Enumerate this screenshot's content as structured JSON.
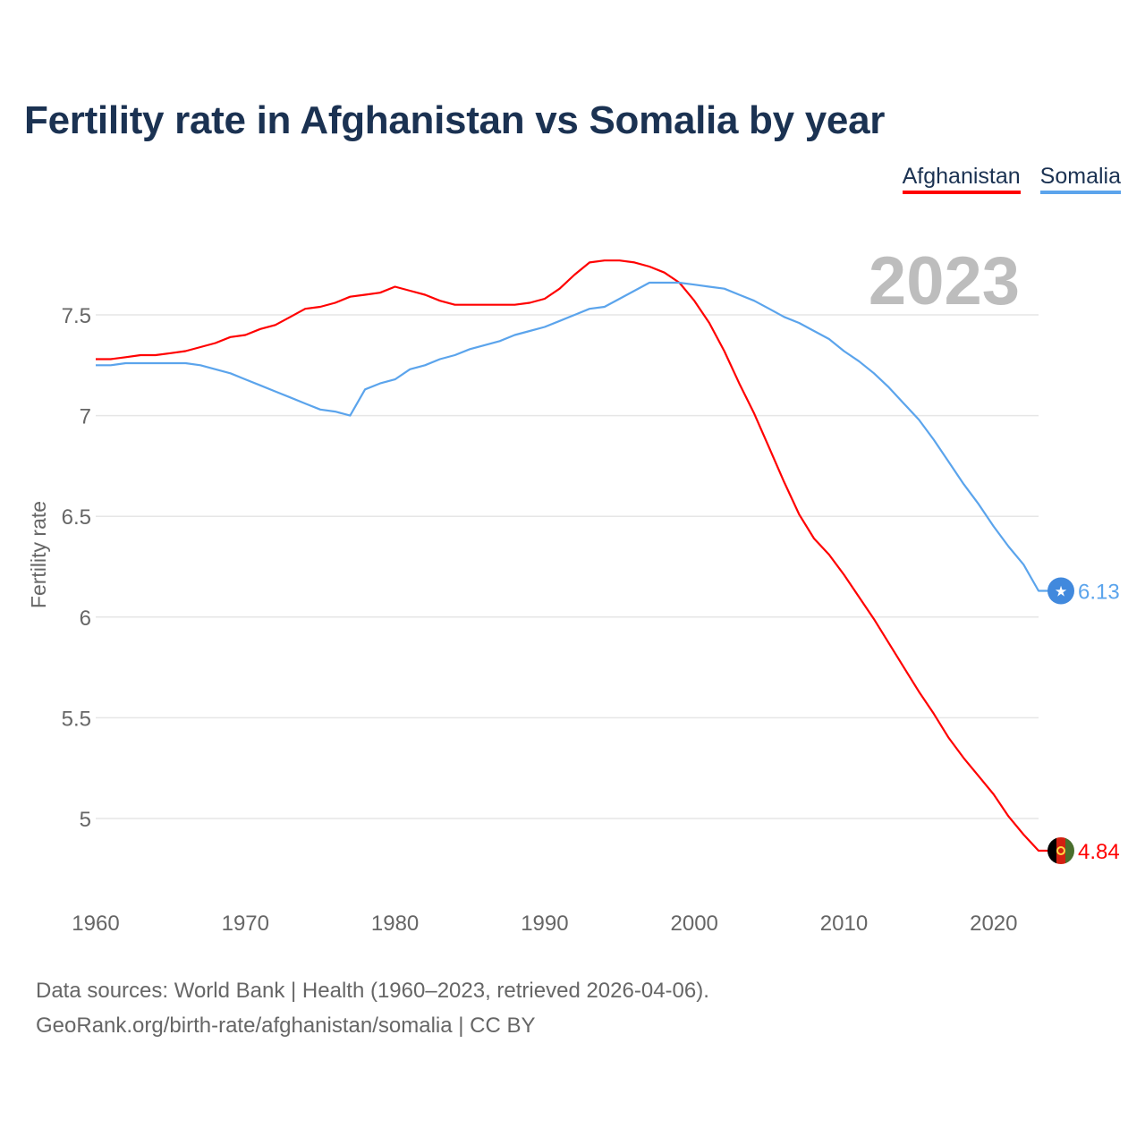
{
  "chart_data": {
    "type": "line",
    "title": "Fertility rate in Afghanistan vs Somalia by year",
    "xlabel": "",
    "ylabel": "Fertility rate",
    "year_badge": "2023",
    "xlim": [
      1960,
      2023
    ],
    "ylim": [
      4.65,
      7.85
    ],
    "grid": true,
    "legend_position": "top-right",
    "x_ticks": [
      "1960",
      "1970",
      "1980",
      "1990",
      "2000",
      "2010",
      "2020"
    ],
    "y_ticks": [
      "5",
      "5.5",
      "6",
      "6.5",
      "7",
      "7.5"
    ],
    "x": [
      1960,
      1961,
      1962,
      1963,
      1964,
      1965,
      1966,
      1967,
      1968,
      1969,
      1970,
      1971,
      1972,
      1973,
      1974,
      1975,
      1976,
      1977,
      1978,
      1979,
      1980,
      1981,
      1982,
      1983,
      1984,
      1985,
      1986,
      1987,
      1988,
      1989,
      1990,
      1991,
      1992,
      1993,
      1994,
      1995,
      1996,
      1997,
      1998,
      1999,
      2000,
      2001,
      2002,
      2003,
      2004,
      2005,
      2006,
      2007,
      2008,
      2009,
      2010,
      2011,
      2012,
      2013,
      2014,
      2015,
      2016,
      2017,
      2018,
      2019,
      2020,
      2021,
      2022,
      2023
    ],
    "series": [
      {
        "name": "Afghanistan",
        "color": "#ff0000",
        "end_label": "4.84",
        "flag": "afghanistan-flag",
        "values": [
          7.28,
          7.28,
          7.29,
          7.3,
          7.3,
          7.31,
          7.32,
          7.34,
          7.36,
          7.39,
          7.4,
          7.43,
          7.45,
          7.49,
          7.53,
          7.54,
          7.56,
          7.59,
          7.6,
          7.61,
          7.64,
          7.62,
          7.6,
          7.57,
          7.55,
          7.55,
          7.55,
          7.55,
          7.55,
          7.56,
          7.58,
          7.63,
          7.7,
          7.76,
          7.77,
          7.77,
          7.76,
          7.74,
          7.71,
          7.66,
          7.57,
          7.46,
          7.32,
          7.16,
          7.01,
          6.84,
          6.67,
          6.51,
          6.39,
          6.31,
          6.21,
          6.1,
          5.99,
          5.87,
          5.75,
          5.63,
          5.52,
          5.4,
          5.3,
          5.21,
          5.12,
          5.01,
          4.92,
          4.84
        ]
      },
      {
        "name": "Somalia",
        "color": "#5ba4ec",
        "end_label": "6.13",
        "flag": "somalia-flag",
        "values": [
          7.25,
          7.25,
          7.26,
          7.26,
          7.26,
          7.26,
          7.26,
          7.25,
          7.23,
          7.21,
          7.18,
          7.15,
          7.12,
          7.09,
          7.06,
          7.03,
          7.02,
          7.0,
          7.13,
          7.16,
          7.18,
          7.23,
          7.25,
          7.28,
          7.3,
          7.33,
          7.35,
          7.37,
          7.4,
          7.42,
          7.44,
          7.47,
          7.5,
          7.53,
          7.54,
          7.58,
          7.62,
          7.66,
          7.66,
          7.66,
          7.65,
          7.64,
          7.63,
          7.6,
          7.57,
          7.53,
          7.49,
          7.46,
          7.42,
          7.38,
          7.32,
          7.27,
          7.21,
          7.14,
          7.06,
          6.98,
          6.88,
          6.77,
          6.66,
          6.56,
          6.45,
          6.35,
          6.26,
          6.13
        ]
      }
    ]
  },
  "footer": {
    "line1": "Data sources: World Bank | Health (1960–2023, retrieved 2026-04-06).",
    "line2": "GeoRank.org/birth-rate/afghanistan/somalia | CC BY"
  }
}
